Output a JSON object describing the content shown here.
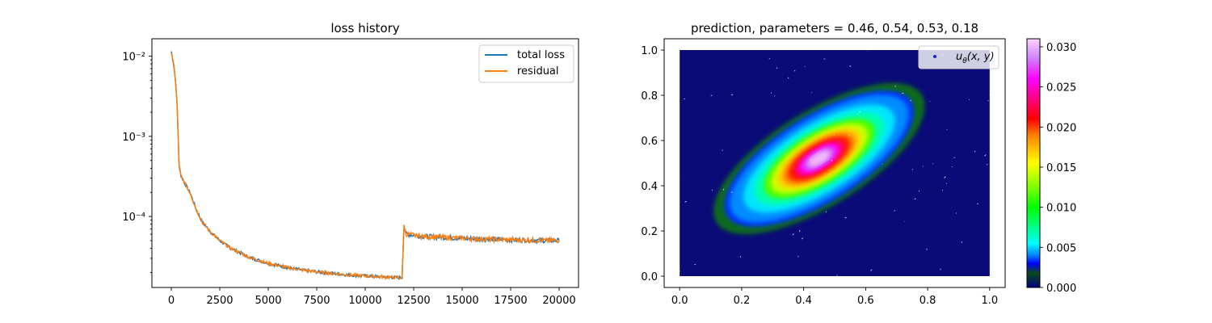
{
  "chart_data": [
    {
      "type": "line",
      "title": "loss history",
      "xlabel": "",
      "ylabel": "",
      "xlim": [
        -1000,
        21000
      ],
      "ylim": [
        1.3e-05,
        0.0165
      ],
      "y_scale": "log",
      "grid": false,
      "x_ticks": [
        0,
        2500,
        5000,
        7500,
        10000,
        12500,
        15000,
        17500,
        20000
      ],
      "x_tick_labels": [
        "0",
        "2500",
        "5000",
        "7500",
        "10000",
        "12500",
        "15000",
        "17500",
        "20000"
      ],
      "y_ticks": [
        0.01,
        0.001,
        0.0001
      ],
      "y_tick_labels": [
        "10⁻²",
        "10⁻³",
        "10⁻⁴"
      ],
      "legend": {
        "position": "top-right",
        "entries": [
          {
            "label": "total loss",
            "color": "#1f77b4"
          },
          {
            "label": "residual",
            "color": "#ff7f0e"
          }
        ]
      },
      "series": [
        {
          "name": "total loss",
          "color": "#1f77b4",
          "x": [
            0,
            100,
            200,
            300,
            400,
            500,
            700,
            1000,
            1300,
            1600,
            2000,
            2500,
            3000,
            4000,
            5000,
            6000,
            7000,
            8000,
            9000,
            10000,
            11000,
            11900,
            12000,
            12100,
            12500,
            13000,
            14000,
            15000,
            16000,
            17000,
            18000,
            19000,
            20000
          ],
          "y": [
            0.0115,
            0.0085,
            0.0055,
            0.0025,
            0.00045,
            0.00032,
            0.00026,
            0.00019,
            0.00012,
            8.5e-05,
            6.5e-05,
            5e-05,
            4.1e-05,
            3.1e-05,
            2.6e-05,
            2.3e-05,
            2.1e-05,
            1.98e-05,
            1.88e-05,
            1.81e-05,
            1.76e-05,
            1.72e-05,
            7.8e-05,
            6.05e-05,
            5.85e-05,
            5.65e-05,
            5.5e-05,
            5.35e-05,
            5.25e-05,
            5.15e-05,
            5.1e-05,
            5.05e-05,
            5e-05
          ]
        },
        {
          "name": "residual",
          "color": "#ff7f0e",
          "x": [
            0,
            100,
            200,
            300,
            400,
            500,
            700,
            1000,
            1300,
            1600,
            2000,
            2500,
            3000,
            4000,
            5000,
            6000,
            7000,
            8000,
            9000,
            10000,
            11000,
            11900,
            12000,
            12100,
            12500,
            13000,
            14000,
            15000,
            16000,
            17000,
            18000,
            19000,
            20000
          ],
          "y": [
            0.0115,
            0.0085,
            0.0055,
            0.0025,
            0.00045,
            0.00032,
            0.00026,
            0.00019,
            0.00012,
            8.5e-05,
            6.5e-05,
            5e-05,
            4.1e-05,
            3.1e-05,
            2.6e-05,
            2.3e-05,
            2.1e-05,
            1.98e-05,
            1.88e-05,
            1.81e-05,
            1.76e-05,
            1.72e-05,
            7.8e-05,
            6.05e-05,
            5.85e-05,
            5.65e-05,
            5.5e-05,
            5.35e-05,
            5.25e-05,
            5.15e-05,
            5.1e-05,
            5.05e-05,
            5e-05
          ]
        }
      ]
    },
    {
      "type": "scatter",
      "title": "prediction, parameters = 0.46, 0.54, 0.53, 0.18",
      "xlabel": "",
      "ylabel": "",
      "xlim": [
        -0.05,
        1.05
      ],
      "ylim": [
        -0.05,
        1.05
      ],
      "grid": false,
      "x_ticks": [
        0.0,
        0.2,
        0.4,
        0.6,
        0.8,
        1.0
      ],
      "x_tick_labels": [
        "0.0",
        "0.2",
        "0.4",
        "0.6",
        "0.8",
        "1.0"
      ],
      "y_ticks": [
        0.0,
        0.2,
        0.4,
        0.6,
        0.8,
        1.0
      ],
      "y_tick_labels": [
        "0.0",
        "0.2",
        "0.4",
        "0.6",
        "0.8",
        "1.0"
      ],
      "legend": {
        "position": "top-right",
        "entries": [
          {
            "label_main": "u",
            "label_sub": "θ",
            "label_args": "(x, y)",
            "color": "#1f1fe0"
          }
        ]
      },
      "colormap": "gist_ncar",
      "field": {
        "center": [
          0.45,
          0.52
        ],
        "peak": 0.031,
        "ring_levels": [
          {
            "value": 0.0025,
            "color": "#0a6b1e",
            "rx": 0.39,
            "ry": 0.21
          },
          {
            "value": 0.0035,
            "color": "#0033ff",
            "rx": 0.35,
            "ry": 0.19
          },
          {
            "value": 0.0045,
            "color": "#008bff",
            "rx": 0.33,
            "ry": 0.175
          },
          {
            "value": 0.006,
            "color": "#00e5ff",
            "rx": 0.28,
            "ry": 0.15
          },
          {
            "value": 0.008,
            "color": "#00ffaf",
            "rx": 0.24,
            "ry": 0.13
          },
          {
            "value": 0.011,
            "color": "#4cff00",
            "rx": 0.205,
            "ry": 0.112
          },
          {
            "value": 0.014,
            "color": "#c8ff00",
            "rx": 0.18,
            "ry": 0.098
          },
          {
            "value": 0.017,
            "color": "#ffd400",
            "rx": 0.155,
            "ry": 0.085
          },
          {
            "value": 0.019,
            "color": "#ff8c00",
            "rx": 0.135,
            "ry": 0.075
          },
          {
            "value": 0.021,
            "color": "#ff1e00",
            "rx": 0.115,
            "ry": 0.064
          },
          {
            "value": 0.024,
            "color": "#ff0066",
            "rx": 0.092,
            "ry": 0.052
          },
          {
            "value": 0.026,
            "color": "#ff00ff",
            "rx": 0.075,
            "ry": 0.043
          },
          {
            "value": 0.028,
            "color": "#d060ff",
            "rx": 0.058,
            "ry": 0.034
          },
          {
            "value": 0.03,
            "color": "#f0b8f5",
            "rx": 0.04,
            "ry": 0.024
          }
        ],
        "rotation_deg": -32,
        "background_color": "#0a0a78",
        "edge_color": "#052050"
      },
      "colorbar": {
        "range": [
          0.0,
          0.031
        ],
        "ticks": [
          0.0,
          0.005,
          0.01,
          0.015,
          0.02,
          0.025,
          0.03
        ],
        "tick_labels": [
          "0.000",
          "0.005",
          "0.010",
          "0.015",
          "0.020",
          "0.025",
          "0.030"
        ],
        "gradient": [
          {
            "value": 0.0,
            "color": "#000080"
          },
          {
            "value": 0.0018,
            "color": "#0a4a1a"
          },
          {
            "value": 0.003,
            "color": "#0000ff"
          },
          {
            "value": 0.004,
            "color": "#0080ff"
          },
          {
            "value": 0.0055,
            "color": "#00ffff"
          },
          {
            "value": 0.0075,
            "color": "#00ff88"
          },
          {
            "value": 0.01,
            "color": "#00ff00"
          },
          {
            "value": 0.0125,
            "color": "#80ff00"
          },
          {
            "value": 0.0155,
            "color": "#ffff00"
          },
          {
            "value": 0.019,
            "color": "#ff8000"
          },
          {
            "value": 0.021,
            "color": "#ff0000"
          },
          {
            "value": 0.0235,
            "color": "#ff0080"
          },
          {
            "value": 0.026,
            "color": "#ff00ff"
          },
          {
            "value": 0.0285,
            "color": "#d080ff"
          },
          {
            "value": 0.031,
            "color": "#fbd5fb"
          }
        ]
      }
    }
  ]
}
